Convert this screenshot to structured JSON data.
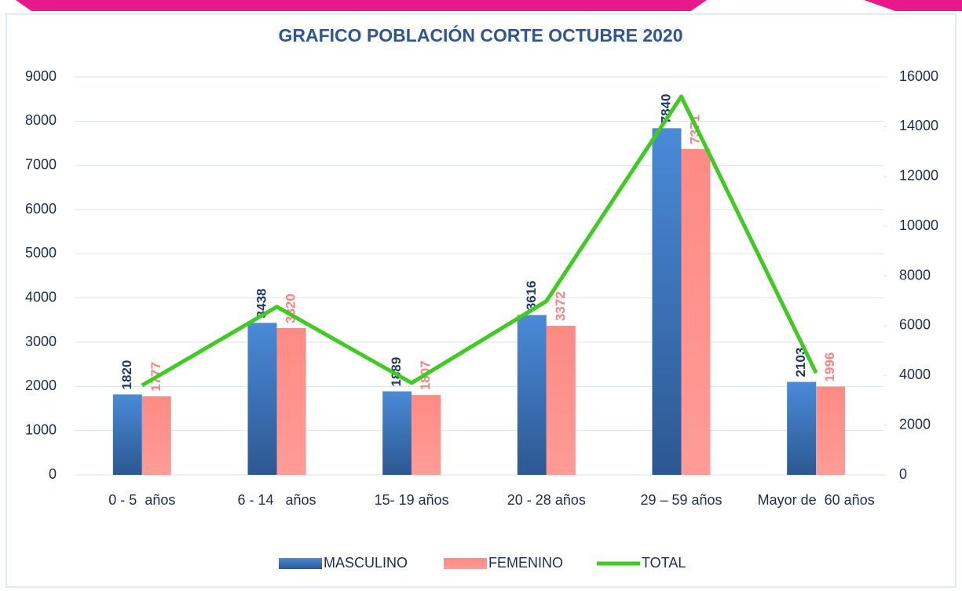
{
  "chart_data": {
    "type": "bar_line",
    "title": "GRAFICO POBLACIÓN CORTE OCTUBRE 2020",
    "categories": [
      "0 - 5  años",
      "6 - 14   años",
      "15- 19 años",
      "20 - 28 años",
      "29 – 59 años",
      "Mayor de  60 años"
    ],
    "series": [
      {
        "name": "MASCULINO",
        "color": "#3a73bd",
        "values": [
          1820,
          3438,
          1889,
          3616,
          7840,
          2103
        ]
      },
      {
        "name": "FEMENINO",
        "color": "#ff8b86",
        "values": [
          1777,
          3320,
          1807,
          3372,
          7371,
          1996
        ]
      },
      {
        "name": "TOTAL",
        "color": "#3dcc1f",
        "axis": "y2",
        "values": [
          3597,
          6758,
          3696,
          6988,
          15211,
          4099
        ]
      }
    ],
    "ylim": [
      0,
      9000
    ],
    "yticks": [
      0,
      1000,
      2000,
      3000,
      4000,
      5000,
      6000,
      7000,
      8000,
      9000
    ],
    "y2lim": [
      0,
      16000
    ],
    "y2ticks": [
      0,
      2000,
      4000,
      6000,
      8000,
      10000,
      12000,
      14000,
      16000
    ],
    "grid": true,
    "legend": "bottom"
  }
}
